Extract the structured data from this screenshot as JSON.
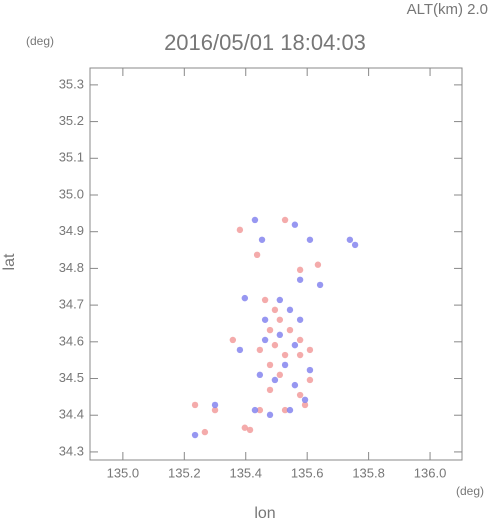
{
  "chart_data": {
    "type": "scatter",
    "altitude_label": "ALT(km) 2.0",
    "title": "2016/05/01 18:04:03",
    "y_unit": "(deg)",
    "x_unit": "(deg)",
    "x_label": "lon",
    "y_label": "lat",
    "xlim": [
      134.893,
      136.104
    ],
    "ylim": [
      34.278,
      35.346
    ],
    "xticks": [
      {
        "value": 135.0,
        "label": "135.0"
      },
      135.2,
      135.4,
      135.6,
      135.8,
      {
        "value": 136.0,
        "label": "136.0"
      }
    ],
    "yticks": [
      35.3,
      35.2,
      35.1,
      {
        "value": 35.0,
        "label": "35.0"
      },
      34.9,
      34.8,
      34.7,
      34.6,
      34.5,
      34.4,
      34.3
    ],
    "series": [
      {
        "color": "#f29c9c",
        "x": [
          135.381,
          135.528,
          135.437,
          135.577,
          135.635,
          135.463,
          135.495,
          135.511,
          135.479,
          135.544,
          135.577,
          135.495,
          135.528,
          135.577,
          135.479,
          135.511,
          135.609,
          135.577,
          135.528,
          135.593,
          135.446,
          135.397,
          135.414,
          135.267,
          135.235,
          135.3,
          135.358,
          135.479,
          135.446,
          135.609
        ],
        "y": [
          34.905,
          34.932,
          34.837,
          34.796,
          34.81,
          34.714,
          34.687,
          34.66,
          34.632,
          34.632,
          34.605,
          34.591,
          34.564,
          34.564,
          34.537,
          34.51,
          34.496,
          34.455,
          34.414,
          34.428,
          34.414,
          34.366,
          34.36,
          34.354,
          34.428,
          34.414,
          34.605,
          34.469,
          34.578,
          34.578
        ]
      },
      {
        "color": "#8585ee",
        "x": [
          135.43,
          135.56,
          135.453,
          135.609,
          135.739,
          135.756,
          135.577,
          135.642,
          135.397,
          135.511,
          135.544,
          135.463,
          135.577,
          135.511,
          135.56,
          135.463,
          135.528,
          135.495,
          135.56,
          135.593,
          135.544,
          135.479,
          135.43,
          135.3,
          135.235,
          135.381,
          135.609,
          135.446
        ],
        "y": [
          34.932,
          34.919,
          34.878,
          34.878,
          34.878,
          34.864,
          34.769,
          34.755,
          34.719,
          34.714,
          34.687,
          34.66,
          34.66,
          34.619,
          34.591,
          34.605,
          34.537,
          34.496,
          34.482,
          34.442,
          34.414,
          34.401,
          34.414,
          34.428,
          34.346,
          34.578,
          34.523,
          34.51
        ]
      }
    ]
  }
}
